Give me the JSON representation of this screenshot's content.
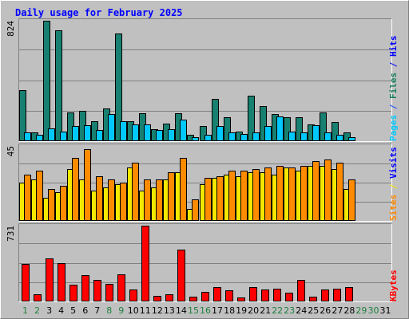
{
  "chart_data": {
    "type": "bar",
    "title": "Daily usage for February 2025",
    "x": [
      "1",
      "2",
      "3",
      "4",
      "5",
      "6",
      "7",
      "8",
      "9",
      "10",
      "11",
      "12",
      "13",
      "14",
      "15",
      "16",
      "17",
      "18",
      "19",
      "20",
      "21",
      "22",
      "23",
      "24",
      "25",
      "26",
      "27",
      "28",
      "29",
      "30",
      "31"
    ],
    "weekend_days": [
      "1",
      "2",
      "8",
      "9",
      "15",
      "16",
      "22",
      "23",
      "29",
      "30"
    ],
    "panels": [
      {
        "name": "hits-files-pages",
        "ymax_label": "824",
        "ymax": 824,
        "right_label_parts": [
          "Pages",
          " / ",
          "Files",
          " / ",
          "Hits"
        ],
        "right_label_colors": [
          "#00c8ff",
          "#1a4aff",
          "#1a8060"
        ],
        "series": [
          {
            "key": "hits",
            "color": "#188070",
            "values": [
              350,
              62,
              824,
              757,
              197,
              207,
              136,
              224,
              737,
              139,
              189,
              80,
              122,
              191,
              42,
              106,
              289,
              166,
              66,
              311,
              242,
              183,
              161,
              162,
              113,
              194,
              131,
              59,
              0,
              0,
              0
            ]
          },
          {
            "key": "files",
            "color": "#00c8ff",
            "values": [
              62,
              46,
              86,
              67,
              103,
              111,
              74,
              184,
              138,
              117,
              112,
              77,
              84,
              150,
              25,
              41,
              106,
              60,
              51,
              60,
              102,
              168,
              63,
              58,
              111,
              59,
              46,
              30,
              0,
              0,
              0
            ]
          }
        ]
      },
      {
        "name": "visits-sites",
        "ymax_label": "45",
        "ymax": 45,
        "right_label_parts": [
          "Sites",
          " / ",
          "Visits"
        ],
        "right_label_colors": [
          "#ff8800",
          "#f5e000"
        ],
        "series": [
          {
            "key": "visits",
            "color": "#f5e800",
            "values": [
              23,
              25,
              14,
              17,
              31,
              25,
              18,
              20,
              22,
              32,
              18,
              20,
              25,
              29,
              7,
              22,
              26,
              28,
              27,
              29,
              29,
              28,
              32,
              30,
              33,
              33,
              31,
              19,
              0,
              0,
              0
            ]
          },
          {
            "key": "sites",
            "color": "#ff8c00",
            "values": [
              28,
              30,
              19,
              21,
              38,
              43,
              27,
              25,
              23,
              35,
              25,
              25,
              29,
              38,
              13,
              26,
              27,
              30,
              30,
              31,
              32,
              33,
              32,
              33,
              36,
              37,
              35,
              25,
              0,
              0,
              0
            ]
          }
        ]
      },
      {
        "name": "kbytes",
        "ymax_label": "731",
        "ymax": 731,
        "right_label_parts": [
          "KBytes"
        ],
        "right_label_colors": [
          "#ff0000"
        ],
        "series": [
          {
            "key": "kbytes",
            "color": "#ff0000",
            "values": [
              365,
              70,
              416,
              366,
              165,
              255,
              207,
              168,
              258,
              116,
              731,
              55,
              70,
              500,
              44,
              91,
              140,
              106,
              40,
              142,
              114,
              123,
              82,
              205,
              48,
              114,
              126,
              140,
              0,
              0,
              0
            ]
          }
        ]
      }
    ]
  },
  "colors": {
    "border_light": "#ffffff",
    "border_dark": "#808080",
    "frame": "#c0c0c0",
    "plot_bg": "#c0c0c0",
    "grid": "#808080",
    "title": "#0000ff",
    "day_weekday": "#000000",
    "day_weekend": "#208040"
  }
}
